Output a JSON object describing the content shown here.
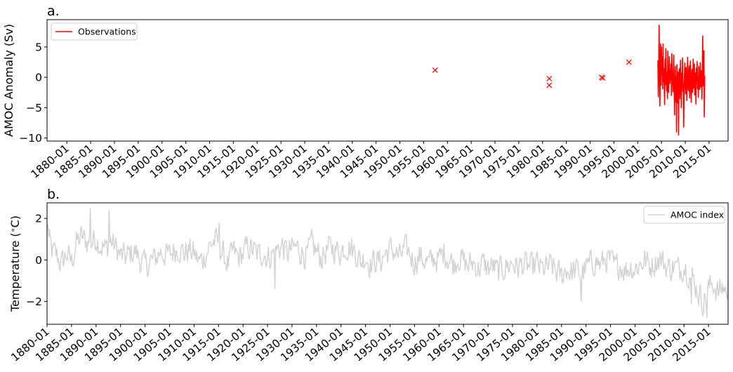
{
  "chart_data": [
    {
      "panel_label": "a.",
      "type": "line",
      "ylabel": "AMOC Anomaly (Sv)",
      "xlim": [
        "1875-11",
        "2019-01"
      ],
      "ylim": [
        -10.5,
        9.5
      ],
      "yticks": [
        -10,
        -5,
        0,
        5
      ],
      "ytick_labels": [
        "−10",
        "−5",
        "0",
        "5"
      ],
      "xticks": [
        "1880-01",
        "1885-01",
        "1890-01",
        "1895-01",
        "1900-01",
        "1905-01",
        "1910-01",
        "1915-01",
        "1920-01",
        "1925-01",
        "1930-01",
        "1935-01",
        "1940-01",
        "1945-01",
        "1950-01",
        "1955-01",
        "1960-01",
        "1965-01",
        "1970-01",
        "1975-01",
        "1980-01",
        "1985-01",
        "1990-01",
        "1995-01",
        "2000-01",
        "2005-01",
        "2010-01",
        "2015-01"
      ],
      "grid": false,
      "legend": {
        "placement": "top-left",
        "entries": [
          "Observations"
        ]
      },
      "series": [
        {
          "name": "Observations",
          "color": "#ff0000",
          "style": "line",
          "x_start": "2004-04",
          "x_step_months": 1,
          "values": [
            2.8,
            -3.2,
            1.2,
            8.6,
            2.0,
            -4.7,
            1.0,
            5.5,
            -1.3,
            5.0,
            0.4,
            3.4,
            -1.9,
            5.5,
            -0.8,
            1.5,
            -2.0,
            -4.5,
            3.0,
            -1.2,
            4.7,
            1.1,
            -2.2,
            0.8,
            -3.5,
            4.3,
            -0.5,
            -2.5,
            0.6,
            3.4,
            -1.0,
            1.1,
            -0.4,
            2.2,
            -3.0,
            3.9,
            1.3,
            -0.8,
            -2.4,
            0.5,
            3.7,
            -1.8,
            -6.2,
            -1.1,
            1.8,
            -4.0,
            0.2,
            -9.0,
            2.1,
            -4.2,
            -1.2,
            0.9,
            -9.5,
            -1.6,
            1.4,
            -3.5,
            -0.3,
            2.8,
            -1.9,
            -5.0,
            0.7,
            -2.3,
            3.2,
            -0.6,
            -1.4,
            -8.2,
            -3.1,
            0.5,
            2.4,
            -0.9,
            -2.7,
            1.6,
            -0.4,
            -3.8,
            0.9,
            3.3,
            -1.5,
            -2.2,
            0.6,
            1.9,
            -3.4,
            -0.8,
            2.7,
            -1.2,
            -4.1,
            0.4,
            1.3,
            -2.5,
            -0.6,
            3.0,
            -1.8,
            -0.3,
            2.2,
            -2.9,
            0.8,
            -1.1,
            -4.4,
            1.5,
            -0.7,
            2.6,
            -1.9,
            0.3,
            -3.3,
            1.8,
            -0.5,
            -2.0,
            0.9,
            2.4,
            -1.6,
            -0.2,
            1.1,
            -3.6,
            0.6,
            6.8,
            -1.4,
            0.4,
            4.4,
            -6.5,
            0.3
          ]
        },
        {
          "name": "",
          "color": "#ff0000",
          "style": "marker-x",
          "points": [
            {
              "x": "1957-06",
              "y": 1.2
            },
            {
              "x": "1981-06",
              "y": -0.2
            },
            {
              "x": "1981-06",
              "y": -1.3
            },
            {
              "x": "1992-06",
              "y": 0.0
            },
            {
              "x": "1992-09",
              "y": -0.1
            },
            {
              "x": "1998-03",
              "y": 2.5
            }
          ]
        }
      ]
    },
    {
      "panel_label": "b.",
      "type": "line",
      "ylabel": "Temperature ($^\\circ$C)",
      "xlim": [
        "1880-01",
        "2019-01"
      ],
      "ylim": [
        -3.1,
        2.75
      ],
      "yticks": [
        -2,
        0,
        2
      ],
      "ytick_labels": [
        "−2",
        "0",
        "2"
      ],
      "xticks": [
        "1880-01",
        "1885-01",
        "1890-01",
        "1895-01",
        "1900-01",
        "1905-01",
        "1910-01",
        "1915-01",
        "1920-01",
        "1925-01",
        "1930-01",
        "1935-01",
        "1940-01",
        "1945-01",
        "1950-01",
        "1955-01",
        "1960-01",
        "1965-01",
        "1970-01",
        "1975-01",
        "1980-01",
        "1985-01",
        "1990-01",
        "1995-01",
        "2000-01",
        "2005-01",
        "2010-01",
        "2015-01"
      ],
      "grid": false,
      "legend": {
        "placement": "top-right",
        "entries": [
          "AMOC index"
        ]
      },
      "series": [
        {
          "name": "AMOC index",
          "color": "#d3d3d3",
          "style": "line",
          "x_start": "1880-01",
          "x_step_months": 2,
          "anchors": [
            [
              1880.0,
              1.3
            ],
            [
              1881.0,
              0.4
            ],
            [
              1882.0,
              0.2
            ],
            [
              1883.0,
              -0.2
            ],
            [
              1884.0,
              0.3
            ],
            [
              1885.0,
              -0.1
            ],
            [
              1886.0,
              0.8
            ],
            [
              1887.0,
              1.1
            ],
            [
              1888.0,
              0.9
            ],
            [
              1889.0,
              0.8
            ],
            [
              1890.0,
              1.1
            ],
            [
              1891.0,
              0.7
            ],
            [
              1892.0,
              0.5
            ],
            [
              1893.0,
              0.9
            ],
            [
              1894.0,
              0.6
            ],
            [
              1895.0,
              0.2
            ],
            [
              1896.0,
              0.1
            ],
            [
              1897.0,
              0.3
            ],
            [
              1898.0,
              0.4
            ],
            [
              1899.0,
              0.0
            ],
            [
              1900.0,
              -0.3
            ],
            [
              1901.0,
              -0.1
            ],
            [
              1902.0,
              0.0
            ],
            [
              1903.0,
              0.4
            ],
            [
              1904.0,
              0.3
            ],
            [
              1905.0,
              0.2
            ],
            [
              1906.0,
              0.5
            ],
            [
              1907.0,
              0.6
            ],
            [
              1908.0,
              0.3
            ],
            [
              1909.0,
              0.5
            ],
            [
              1910.0,
              0.3
            ],
            [
              1911.0,
              -0.1
            ],
            [
              1912.0,
              0.1
            ],
            [
              1913.0,
              0.6
            ],
            [
              1914.0,
              0.9
            ],
            [
              1915.0,
              0.8
            ],
            [
              1916.0,
              0.2
            ],
            [
              1917.0,
              -0.2
            ],
            [
              1918.0,
              0.4
            ],
            [
              1919.0,
              0.1
            ],
            [
              1920.0,
              0.3
            ],
            [
              1921.0,
              0.6
            ],
            [
              1922.0,
              0.5
            ],
            [
              1923.0,
              0.2
            ],
            [
              1924.0,
              0.4
            ],
            [
              1925.0,
              0.1
            ],
            [
              1926.0,
              0.3
            ],
            [
              1927.0,
              0.5
            ],
            [
              1928.0,
              0.7
            ],
            [
              1929.0,
              0.3
            ],
            [
              1930.0,
              0.5
            ],
            [
              1931.0,
              0.6
            ],
            [
              1932.0,
              0.4
            ],
            [
              1933.0,
              0.2
            ],
            [
              1934.0,
              0.7
            ],
            [
              1935.0,
              0.4
            ],
            [
              1936.0,
              0.1
            ],
            [
              1937.0,
              0.4
            ],
            [
              1938.0,
              0.6
            ],
            [
              1939.0,
              0.5
            ],
            [
              1940.0,
              0.4
            ],
            [
              1941.0,
              0.7
            ],
            [
              1942.0,
              0.6
            ],
            [
              1943.0,
              0.4
            ],
            [
              1944.0,
              -0.1
            ],
            [
              1945.0,
              0.2
            ],
            [
              1946.0,
              -0.2
            ],
            [
              1947.0,
              0.0
            ],
            [
              1948.0,
              -0.1
            ],
            [
              1949.0,
              0.3
            ],
            [
              1950.0,
              0.5
            ],
            [
              1951.0,
              0.4
            ],
            [
              1952.0,
              0.1
            ],
            [
              1953.0,
              0.5
            ],
            [
              1954.0,
              0.3
            ],
            [
              1955.0,
              -0.1
            ],
            [
              1956.0,
              0.2
            ],
            [
              1957.0,
              0.0
            ],
            [
              1958.0,
              -0.2
            ],
            [
              1959.0,
              0.1
            ],
            [
              1960.0,
              0.0
            ],
            [
              1961.0,
              0.4
            ],
            [
              1962.0,
              0.1
            ],
            [
              1963.0,
              -0.2
            ],
            [
              1964.0,
              0.2
            ],
            [
              1965.0,
              -0.1
            ],
            [
              1966.0,
              -0.3
            ],
            [
              1967.0,
              -0.1
            ],
            [
              1968.0,
              -0.4
            ],
            [
              1969.0,
              -0.2
            ],
            [
              1970.0,
              -0.4
            ],
            [
              1971.0,
              -0.3
            ],
            [
              1972.0,
              -0.6
            ],
            [
              1973.0,
              -0.4
            ],
            [
              1974.0,
              -0.3
            ],
            [
              1975.0,
              -0.1
            ],
            [
              1976.0,
              -0.4
            ],
            [
              1977.0,
              -0.2
            ],
            [
              1978.0,
              -0.3
            ],
            [
              1979.0,
              -0.4
            ],
            [
              1980.0,
              -0.2
            ],
            [
              1981.0,
              -0.5
            ],
            [
              1982.0,
              -0.4
            ],
            [
              1983.0,
              -0.3
            ],
            [
              1984.0,
              -0.6
            ],
            [
              1985.0,
              -0.8
            ],
            [
              1986.0,
              -0.4
            ],
            [
              1987.0,
              -0.6
            ],
            [
              1988.0,
              -0.5
            ],
            [
              1989.0,
              -0.7
            ],
            [
              1990.0,
              -0.4
            ],
            [
              1991.0,
              -0.2
            ],
            [
              1992.0,
              0.0
            ],
            [
              1993.0,
              -0.3
            ],
            [
              1994.0,
              0.1
            ],
            [
              1995.0,
              -0.1
            ],
            [
              1996.0,
              -0.4
            ],
            [
              1997.0,
              -0.2
            ],
            [
              1998.0,
              -0.5
            ],
            [
              1999.0,
              -0.3
            ],
            [
              2000.0,
              -0.4
            ],
            [
              2001.0,
              -0.2
            ],
            [
              2002.0,
              0.0
            ],
            [
              2003.0,
              -0.3
            ],
            [
              2004.0,
              -0.1
            ],
            [
              2005.0,
              0.1
            ],
            [
              2006.0,
              -0.2
            ],
            [
              2007.0,
              -0.4
            ],
            [
              2008.0,
              -0.3
            ],
            [
              2009.0,
              -0.5
            ],
            [
              2010.0,
              -0.2
            ],
            [
              2011.0,
              -0.6
            ],
            [
              2012.0,
              -1.0
            ],
            [
              2013.0,
              -1.6
            ],
            [
              2014.0,
              -2.0
            ],
            [
              2015.0,
              -1.4
            ],
            [
              2016.0,
              -1.1
            ],
            [
              2017.0,
              -1.6
            ],
            [
              2018.0,
              -1.3
            ],
            [
              2019.0,
              -1.5
            ]
          ],
          "extremes": [
            [
              1880.2,
              1.7
            ],
            [
              1888.9,
              2.5
            ],
            [
              1892.6,
              2.4
            ],
            [
              1915.2,
              1.8
            ],
            [
              1926.5,
              -1.4
            ],
            [
              1989.0,
              -2.0
            ],
            [
              2011.5,
              -2.1
            ],
            [
              2014.6,
              -2.8
            ],
            [
              2018.8,
              -1.9
            ]
          ]
        }
      ]
    }
  ]
}
